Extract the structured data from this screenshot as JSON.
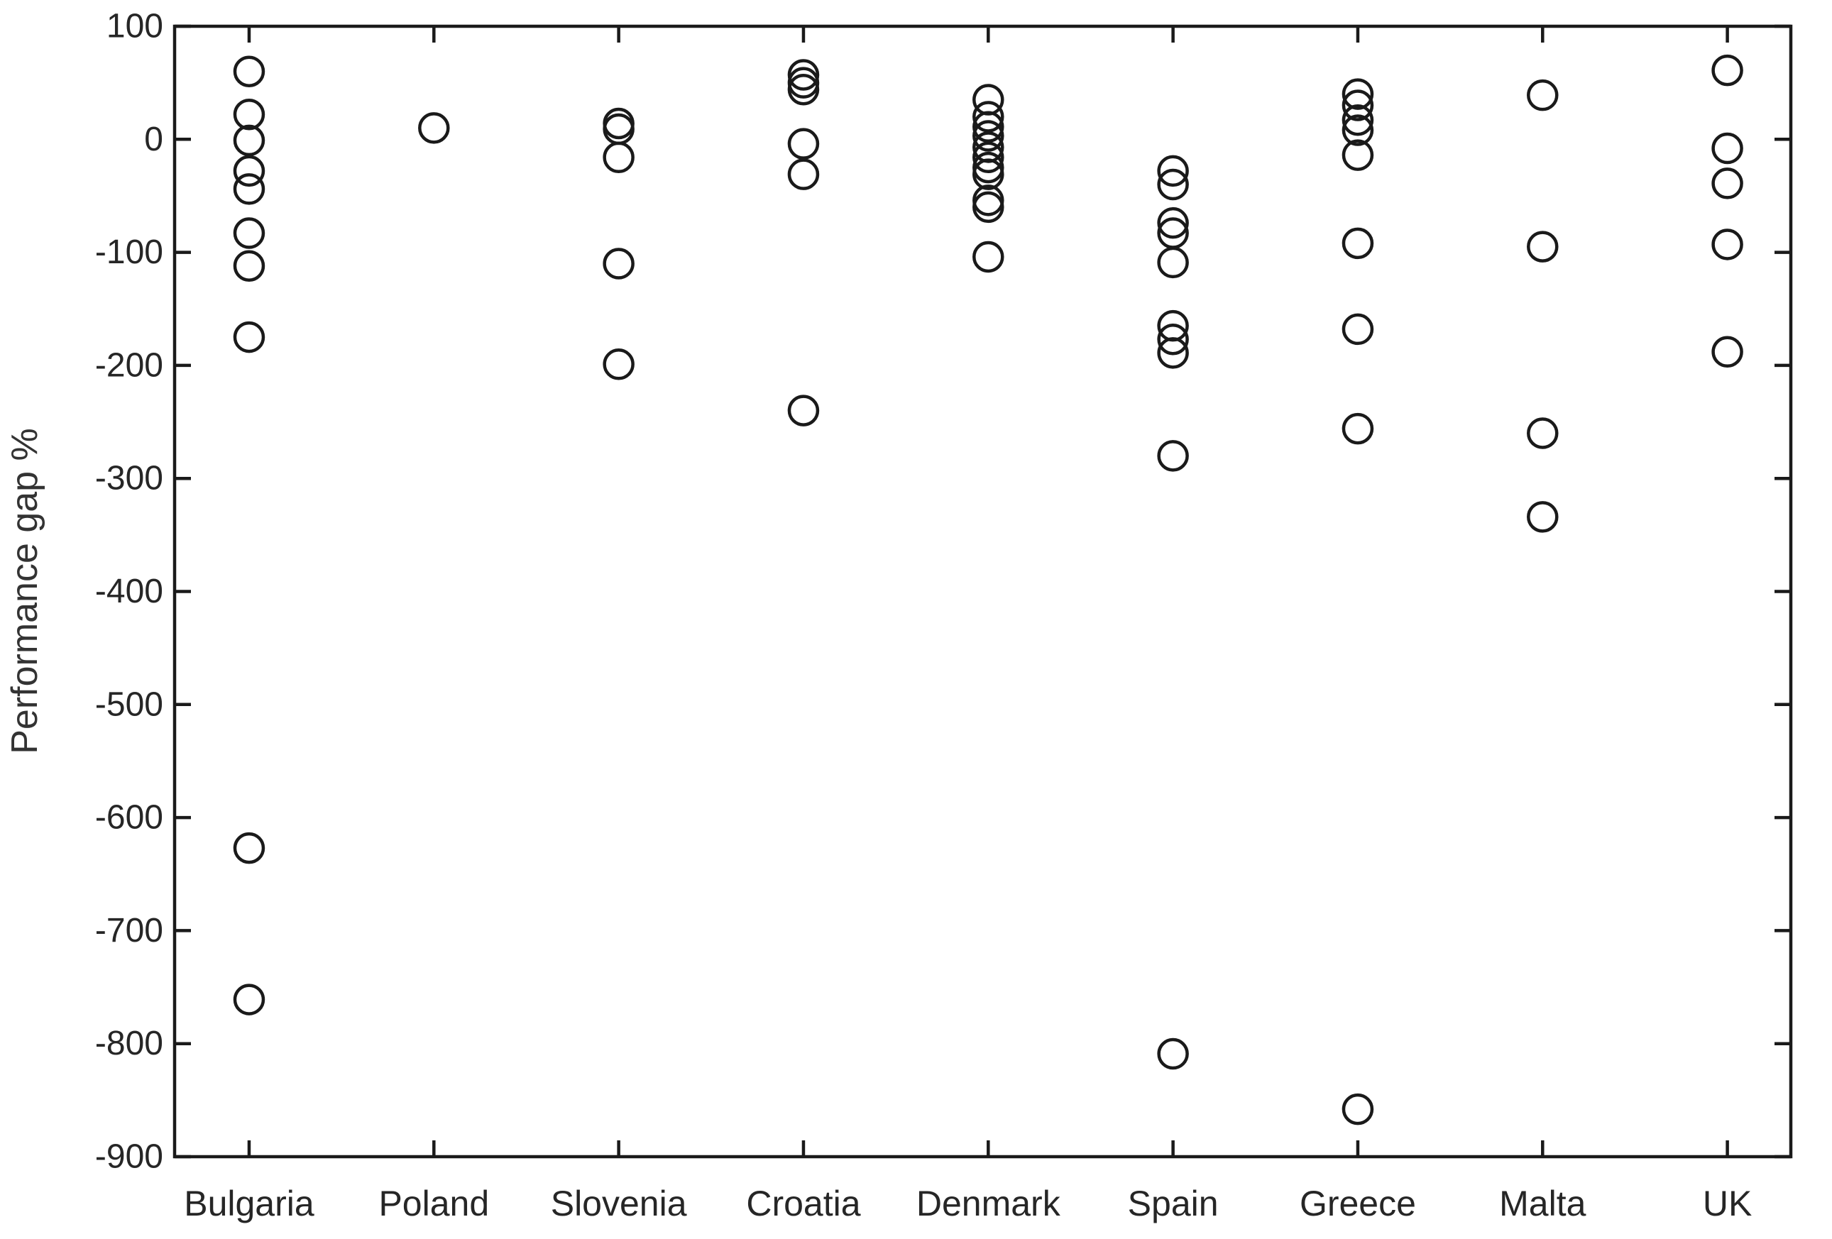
{
  "figure": {
    "background": "#ffffff",
    "axis_color": "#1a1a1a",
    "tick_label_color": "#262626",
    "ylabel_color": "#333333",
    "marker_color": "#1a1a1a"
  },
  "chart_data": {
    "type": "scatter",
    "title": "",
    "xlabel": "",
    "ylabel": "Performance gap %",
    "ylim": [
      -900,
      100
    ],
    "yticks": [
      100,
      0,
      -100,
      -200,
      -300,
      -400,
      -500,
      -600,
      -700,
      -800,
      -900
    ],
    "grid": false,
    "legend_position": "none",
    "marker": "open-circle",
    "box": true,
    "tick_direction": "in",
    "categories": [
      "Bulgaria",
      "Poland",
      "Slovenia",
      "Croatia",
      "Denmark",
      "Spain",
      "Greece",
      "Malta",
      "UK"
    ],
    "series": [
      {
        "name": "Bulgaria",
        "values": [
          60,
          22,
          -1,
          -28,
          -44,
          -83,
          -112,
          -175,
          -627,
          -761
        ]
      },
      {
        "name": "Poland",
        "values": [
          10
        ]
      },
      {
        "name": "Slovenia",
        "values": [
          14,
          9,
          -16,
          -110,
          -199
        ]
      },
      {
        "name": "Croatia",
        "values": [
          57,
          50,
          44,
          -4,
          -31,
          -240
        ]
      },
      {
        "name": "Denmark",
        "values": [
          35,
          20,
          11,
          3,
          -7,
          -16,
          -25,
          -31,
          -54,
          -60,
          -104
        ]
      },
      {
        "name": "Spain",
        "values": [
          -28,
          -40,
          -74,
          -83,
          -109,
          -165,
          -177,
          -189,
          -280,
          -809
        ]
      },
      {
        "name": "Greece",
        "values": [
          40,
          30,
          17,
          8,
          -14,
          -92,
          -168,
          -256,
          -858
        ]
      },
      {
        "name": "Malta",
        "values": [
          39,
          -95,
          -260,
          -334
        ]
      },
      {
        "name": "UK",
        "values": [
          61,
          -8,
          -39,
          -93,
          -188
        ]
      }
    ]
  }
}
